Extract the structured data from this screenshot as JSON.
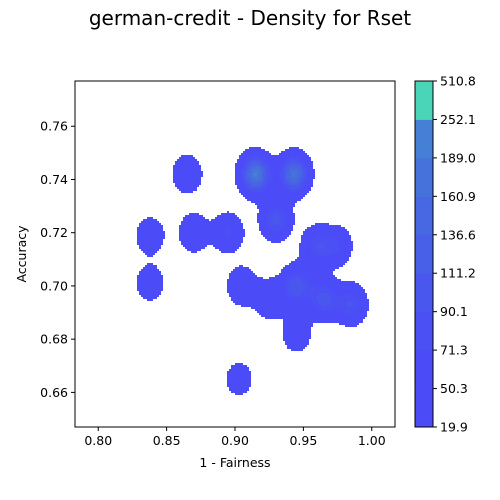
{
  "title": "german-credit - Density for Rset",
  "chart_data": {
    "type": "contourf",
    "title": "german-credit - Density for Rset",
    "xlabel": "1 - Fairness",
    "ylabel": "Accuracy",
    "xlim": [
      0.783,
      1.017
    ],
    "ylim": [
      0.647,
      0.777
    ],
    "x_ticks": [
      "0.80",
      "0.85",
      "0.90",
      "0.95",
      "1.00"
    ],
    "x_tick_values": [
      0.8,
      0.85,
      0.9,
      0.95,
      1.0
    ],
    "y_ticks": [
      "0.66",
      "0.68",
      "0.70",
      "0.72",
      "0.74",
      "0.76"
    ],
    "y_tick_values": [
      0.66,
      0.68,
      0.7,
      0.72,
      0.74,
      0.76
    ],
    "colorbar": {
      "levels": [
        19.9,
        50.3,
        71.3,
        90.1,
        111.2,
        136.6,
        160.9,
        189.0,
        252.1,
        510.8
      ],
      "labels": [
        "19.9",
        "50.3",
        "71.3",
        "90.1",
        "111.2",
        "136.6",
        "160.9",
        "189.0",
        "252.1",
        "510.8"
      ],
      "colors": [
        "#4b4bf7",
        "#4b4bf7",
        "#4a50f3",
        "#4957ee",
        "#485fe8",
        "#4768e2",
        "#4672dc",
        "#4580d6",
        "#4ad4b8"
      ]
    },
    "grid": false,
    "density_sources": [
      {
        "x": 0.915,
        "y": 0.742,
        "w": 1.0
      },
      {
        "x": 0.943,
        "y": 0.742,
        "w": 0.9
      },
      {
        "x": 0.93,
        "y": 0.725,
        "w": 0.55
      },
      {
        "x": 0.945,
        "y": 0.7,
        "w": 0.6
      },
      {
        "x": 0.965,
        "y": 0.695,
        "w": 0.55
      },
      {
        "x": 0.985,
        "y": 0.693,
        "w": 0.5
      },
      {
        "x": 0.96,
        "y": 0.715,
        "w": 0.45
      },
      {
        "x": 0.895,
        "y": 0.72,
        "w": 0.4
      },
      {
        "x": 0.87,
        "y": 0.72,
        "w": 0.35
      },
      {
        "x": 0.838,
        "y": 0.719,
        "w": 0.3
      },
      {
        "x": 0.865,
        "y": 0.742,
        "w": 0.35
      },
      {
        "x": 0.905,
        "y": 0.7,
        "w": 0.35
      },
      {
        "x": 0.925,
        "y": 0.695,
        "w": 0.35
      },
      {
        "x": 0.975,
        "y": 0.715,
        "w": 0.35
      },
      {
        "x": 0.838,
        "y": 0.701,
        "w": 0.28
      },
      {
        "x": 0.903,
        "y": 0.665,
        "w": 0.25
      },
      {
        "x": 0.945,
        "y": 0.682,
        "w": 0.3
      }
    ]
  }
}
